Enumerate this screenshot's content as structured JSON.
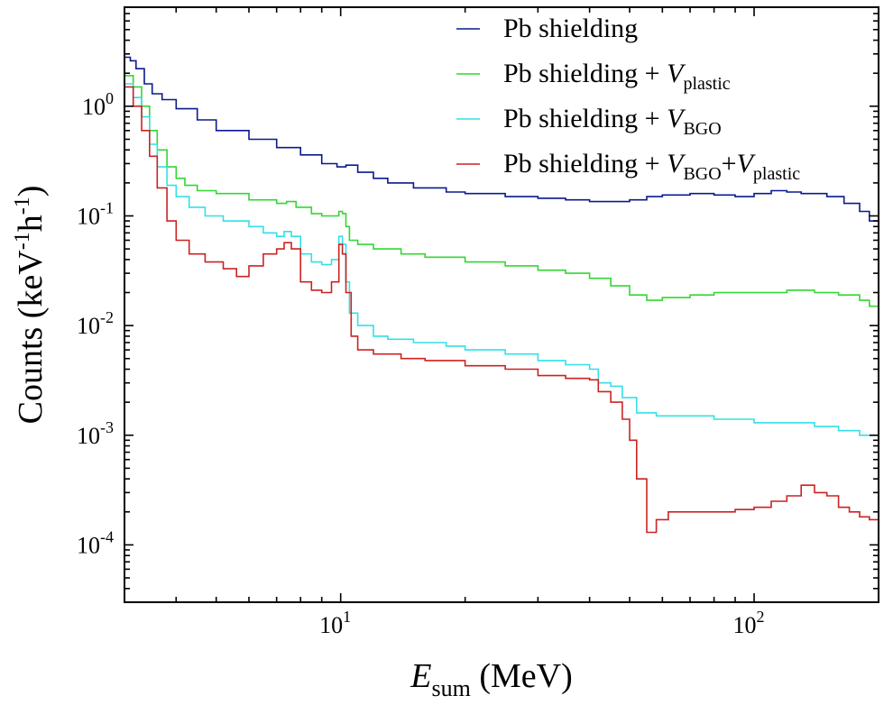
{
  "chart_data": {
    "type": "line",
    "x_scale": "log",
    "y_scale": "log",
    "xlim": [
      3,
      200
    ],
    "ylim": [
      3e-05,
      8
    ],
    "xlabel": "E_sum (MeV)",
    "ylabel": "Counts (keV-1h-1)",
    "xlabel_parts": {
      "symbol": "E",
      "subscript": "sum",
      "unit": "(MeV)"
    },
    "ylabel_parts": {
      "main": "Counts (keV",
      "exp1": "-1",
      "mid": "h",
      "exp2": "-1",
      "close": ")"
    },
    "x_ticks": [
      {
        "value": 10,
        "base": "10",
        "exp": "1"
      },
      {
        "value": 100,
        "base": "10",
        "exp": "2"
      }
    ],
    "y_ticks": [
      {
        "value": 1,
        "base": "10",
        "exp": "0"
      },
      {
        "value": 0.1,
        "base": "10",
        "exp": "-1"
      },
      {
        "value": 0.01,
        "base": "10",
        "exp": "-2"
      },
      {
        "value": 0.001,
        "base": "10",
        "exp": "-3"
      },
      {
        "value": 0.0001,
        "base": "10",
        "exp": "-4"
      }
    ],
    "legend_position": "top-right",
    "grid": false,
    "series": [
      {
        "name": "Pb shielding",
        "name_parts": {
          "base": "Pb shielding",
          "sym1": "",
          "sub1": "",
          "plus2": "",
          "sym2": "",
          "sub2": ""
        },
        "color": "#0a1a8c",
        "points": [
          [
            3.0,
            2.8
          ],
          [
            3.1,
            2.6
          ],
          [
            3.2,
            2.2
          ],
          [
            3.35,
            1.6
          ],
          [
            3.5,
            1.3
          ],
          [
            3.7,
            1.15
          ],
          [
            4.0,
            0.95
          ],
          [
            4.5,
            0.75
          ],
          [
            5.0,
            0.6
          ],
          [
            6.0,
            0.5
          ],
          [
            7.0,
            0.42
          ],
          [
            8.0,
            0.36
          ],
          [
            9.0,
            0.3
          ],
          [
            9.8,
            0.28
          ],
          [
            10.3,
            0.29
          ],
          [
            11.0,
            0.25
          ],
          [
            12.0,
            0.22
          ],
          [
            13.0,
            0.2
          ],
          [
            15.0,
            0.18
          ],
          [
            18.0,
            0.165
          ],
          [
            20.0,
            0.16
          ],
          [
            25.0,
            0.15
          ],
          [
            30.0,
            0.145
          ],
          [
            35.0,
            0.14
          ],
          [
            40.0,
            0.135
          ],
          [
            45.0,
            0.135
          ],
          [
            50.0,
            0.14
          ],
          [
            55.0,
            0.15
          ],
          [
            60.0,
            0.155
          ],
          [
            70.0,
            0.16
          ],
          [
            80.0,
            0.155
          ],
          [
            90.0,
            0.15
          ],
          [
            100.0,
            0.16
          ],
          [
            110.0,
            0.17
          ],
          [
            120.0,
            0.165
          ],
          [
            130.0,
            0.16
          ],
          [
            150.0,
            0.15
          ],
          [
            165.0,
            0.13
          ],
          [
            180.0,
            0.11
          ],
          [
            190.0,
            0.09
          ],
          [
            200.0,
            0.068
          ]
        ]
      },
      {
        "name": "Pb shielding + Vplastic",
        "name_parts": {
          "base": "Pb shielding + ",
          "sym1": "V",
          "sub1": "plastic",
          "plus2": "",
          "sym2": "",
          "sub2": ""
        },
        "color": "#33d633",
        "points": [
          [
            3.0,
            1.9
          ],
          [
            3.15,
            1.5
          ],
          [
            3.3,
            1.0
          ],
          [
            3.45,
            0.6
          ],
          [
            3.6,
            0.4
          ],
          [
            3.8,
            0.28
          ],
          [
            4.0,
            0.22
          ],
          [
            4.2,
            0.19
          ],
          [
            4.5,
            0.17
          ],
          [
            5.0,
            0.16
          ],
          [
            6.0,
            0.14
          ],
          [
            7.0,
            0.13
          ],
          [
            7.4,
            0.135
          ],
          [
            7.8,
            0.12
          ],
          [
            8.5,
            0.105
          ],
          [
            9.0,
            0.1
          ],
          [
            9.5,
            0.1
          ],
          [
            9.9,
            0.11
          ],
          [
            10.1,
            0.105
          ],
          [
            10.3,
            0.08
          ],
          [
            10.5,
            0.06
          ],
          [
            11.0,
            0.055
          ],
          [
            12.0,
            0.05
          ],
          [
            14.0,
            0.045
          ],
          [
            16.0,
            0.042
          ],
          [
            20.0,
            0.038
          ],
          [
            25.0,
            0.035
          ],
          [
            30.0,
            0.032
          ],
          [
            35.0,
            0.03
          ],
          [
            40.0,
            0.027
          ],
          [
            45.0,
            0.023
          ],
          [
            50.0,
            0.019
          ],
          [
            55.0,
            0.017
          ],
          [
            60.0,
            0.018
          ],
          [
            70.0,
            0.019
          ],
          [
            80.0,
            0.02
          ],
          [
            100.0,
            0.02
          ],
          [
            120.0,
            0.021
          ],
          [
            140.0,
            0.02
          ],
          [
            160.0,
            0.019
          ],
          [
            180.0,
            0.017
          ],
          [
            190.0,
            0.015
          ],
          [
            200.0,
            0.014
          ]
        ]
      },
      {
        "name": "Pb shielding + VBGO",
        "name_parts": {
          "base": "Pb shielding + ",
          "sym1": "V",
          "sub1": "BGO",
          "plus2": "",
          "sym2": "",
          "sub2": ""
        },
        "color": "#33e0e6",
        "points": [
          [
            3.0,
            1.6
          ],
          [
            3.15,
            1.2
          ],
          [
            3.3,
            0.8
          ],
          [
            3.45,
            0.45
          ],
          [
            3.6,
            0.28
          ],
          [
            3.8,
            0.19
          ],
          [
            4.0,
            0.15
          ],
          [
            4.3,
            0.12
          ],
          [
            4.7,
            0.1
          ],
          [
            5.2,
            0.09
          ],
          [
            6.0,
            0.08
          ],
          [
            6.5,
            0.07
          ],
          [
            7.0,
            0.065
          ],
          [
            7.3,
            0.072
          ],
          [
            7.6,
            0.065
          ],
          [
            8.0,
            0.045
          ],
          [
            8.5,
            0.038
          ],
          [
            9.0,
            0.036
          ],
          [
            9.5,
            0.04
          ],
          [
            9.9,
            0.065
          ],
          [
            10.1,
            0.055
          ],
          [
            10.3,
            0.025
          ],
          [
            10.5,
            0.013
          ],
          [
            11.0,
            0.01
          ],
          [
            12.0,
            0.008
          ],
          [
            13.0,
            0.0075
          ],
          [
            15.0,
            0.007
          ],
          [
            18.0,
            0.0065
          ],
          [
            20.0,
            0.006
          ],
          [
            25.0,
            0.0055
          ],
          [
            30.0,
            0.0048
          ],
          [
            35.0,
            0.0044
          ],
          [
            40.0,
            0.004
          ],
          [
            42.0,
            0.003
          ],
          [
            45.0,
            0.0028
          ],
          [
            48.0,
            0.0022
          ],
          [
            52.0,
            0.0016
          ],
          [
            58.0,
            0.0015
          ],
          [
            70.0,
            0.0015
          ],
          [
            80.0,
            0.0014
          ],
          [
            100.0,
            0.0013
          ],
          [
            120.0,
            0.0013
          ],
          [
            140.0,
            0.0012
          ],
          [
            160.0,
            0.0011
          ],
          [
            180.0,
            0.001
          ],
          [
            200.0,
            0.0009
          ]
        ]
      },
      {
        "name": "Pb shielding + VBGO+Vplastic",
        "name_parts": {
          "base": "Pb shielding + ",
          "sym1": "V",
          "sub1": "BGO",
          "plus2": "+",
          "sym2": "V",
          "sub2": "plastic"
        },
        "color": "#cc2222",
        "points": [
          [
            3.0,
            1.5
          ],
          [
            3.15,
            1.0
          ],
          [
            3.3,
            0.6
          ],
          [
            3.45,
            0.35
          ],
          [
            3.6,
            0.18
          ],
          [
            3.8,
            0.09
          ],
          [
            4.0,
            0.06
          ],
          [
            4.3,
            0.045
          ],
          [
            4.7,
            0.038
          ],
          [
            5.2,
            0.033
          ],
          [
            5.6,
            0.028
          ],
          [
            6.0,
            0.035
          ],
          [
            6.5,
            0.045
          ],
          [
            7.0,
            0.05
          ],
          [
            7.3,
            0.057
          ],
          [
            7.6,
            0.05
          ],
          [
            8.0,
            0.025
          ],
          [
            8.5,
            0.021
          ],
          [
            9.0,
            0.02
          ],
          [
            9.5,
            0.025
          ],
          [
            9.9,
            0.055
          ],
          [
            10.1,
            0.045
          ],
          [
            10.3,
            0.02
          ],
          [
            10.6,
            0.008
          ],
          [
            11.0,
            0.006
          ],
          [
            12.0,
            0.0055
          ],
          [
            14.0,
            0.005
          ],
          [
            16.0,
            0.0048
          ],
          [
            20.0,
            0.0043
          ],
          [
            25.0,
            0.004
          ],
          [
            30.0,
            0.0035
          ],
          [
            35.0,
            0.0033
          ],
          [
            40.0,
            0.0032
          ],
          [
            42.0,
            0.0025
          ],
          [
            45.0,
            0.002
          ],
          [
            48.0,
            0.0014
          ],
          [
            50.0,
            0.0009
          ],
          [
            52.0,
            0.0004
          ],
          [
            55.0,
            0.00013
          ],
          [
            58.0,
            0.00017
          ],
          [
            62.0,
            0.0002
          ],
          [
            70.0,
            0.0002
          ],
          [
            80.0,
            0.0002
          ],
          [
            90.0,
            0.00021
          ],
          [
            100.0,
            0.00022
          ],
          [
            110.0,
            0.00025
          ],
          [
            120.0,
            0.00028
          ],
          [
            130.0,
            0.00035
          ],
          [
            140.0,
            0.0003
          ],
          [
            150.0,
            0.00028
          ],
          [
            160.0,
            0.00022
          ],
          [
            170.0,
            0.0002
          ],
          [
            180.0,
            0.00018
          ],
          [
            190.0,
            0.00017
          ],
          [
            200.0,
            0.00016
          ]
        ]
      }
    ]
  }
}
